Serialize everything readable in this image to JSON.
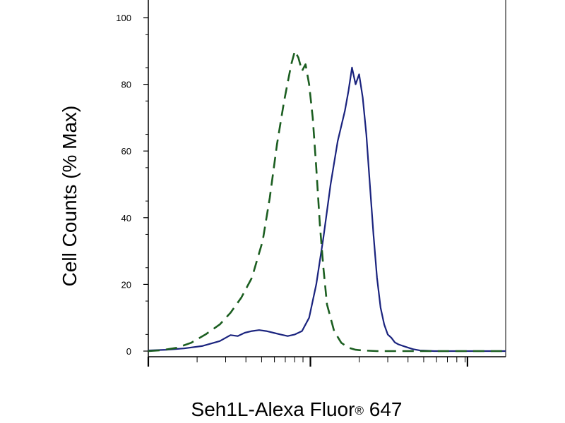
{
  "chart_data": {
    "type": "line",
    "title": "",
    "xlabel": "Seh1L-Alexa Fluor",
    "xlabel_mark": "®",
    "xlabel_suffix": " 647",
    "ylabel": "Cell Counts (% Max)",
    "ylim": [
      0,
      100
    ],
    "xlim": [
      0,
      1
    ],
    "x_scale": "log",
    "grid": false,
    "yticks": [
      "0",
      "20",
      "40",
      "60",
      "80",
      "100"
    ],
    "series": [
      {
        "color": "#1a237e",
        "dash": "solid",
        "x": [
          0.0,
          0.05,
          0.1,
          0.15,
          0.2,
          0.23,
          0.25,
          0.27,
          0.29,
          0.31,
          0.33,
          0.35,
          0.37,
          0.39,
          0.41,
          0.43,
          0.45,
          0.47,
          0.49,
          0.51,
          0.53,
          0.55,
          0.56,
          0.57,
          0.58,
          0.59,
          0.6,
          0.61,
          0.62,
          0.63,
          0.64,
          0.65,
          0.66,
          0.67,
          0.68,
          0.69,
          0.7,
          0.72,
          0.74,
          0.76,
          0.78,
          0.8,
          0.83,
          0.86,
          0.9,
          0.95,
          1.0
        ],
        "y": [
          0.2,
          0.4,
          0.8,
          1.5,
          3,
          4.8,
          4.5,
          5.5,
          6,
          6.3,
          6,
          5.5,
          5,
          4.5,
          5,
          6,
          10,
          20,
          34,
          50,
          63,
          72,
          78,
          85,
          80,
          83,
          76,
          65,
          50,
          35,
          22,
          13,
          8,
          5,
          4,
          2.6,
          2.0,
          1.3,
          0.6,
          0.2,
          0.1,
          0,
          0,
          0,
          0,
          0,
          0
        ]
      },
      {
        "color": "#1b5e20",
        "dash": "dashed",
        "x": [
          0.0,
          0.04,
          0.08,
          0.12,
          0.16,
          0.2,
          0.23,
          0.26,
          0.29,
          0.32,
          0.34,
          0.36,
          0.38,
          0.4,
          0.41,
          0.42,
          0.43,
          0.44,
          0.45,
          0.46,
          0.47,
          0.48,
          0.49,
          0.5,
          0.52,
          0.54,
          0.56,
          0.58,
          0.6,
          0.64,
          0.7,
          0.8,
          1.0
        ],
        "y": [
          0,
          0.3,
          1,
          2.5,
          5,
          8,
          11.5,
          16,
          22,
          33,
          46,
          62,
          75,
          86,
          90,
          88,
          84,
          86,
          80,
          70,
          55,
          38,
          25,
          14,
          6,
          2.5,
          1,
          0.4,
          0.2,
          0,
          0,
          0,
          0
        ]
      }
    ]
  }
}
